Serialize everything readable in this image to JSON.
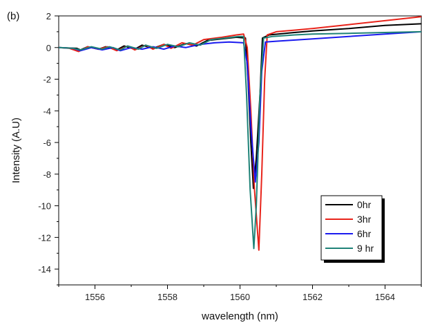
{
  "chart_data": {
    "type": "line",
    "panel_label": "(b)",
    "title": "",
    "xlabel": "wavelength (nm)",
    "ylabel": "Intensity (A.U)",
    "xlim": [
      1555,
      1565
    ],
    "ylim": [
      -15,
      2
    ],
    "x_ticks": [
      1556,
      1558,
      1560,
      1562,
      1564
    ],
    "y_ticks": [
      2,
      0,
      -2,
      -4,
      -6,
      -8,
      -10,
      -12,
      -14
    ],
    "grid": false,
    "legend": {
      "placement": "bottom-right",
      "entries": [
        "0hr",
        "3hr",
        "6hr",
        "9 hr"
      ]
    },
    "series": [
      {
        "name": "0hr",
        "color": "#000000",
        "points": [
          [
            1555,
            0
          ],
          [
            1555.5,
            -0.05
          ],
          [
            1555.6,
            -0.15
          ],
          [
            1555.8,
            0.05
          ],
          [
            1556.1,
            -0.1
          ],
          [
            1556.3,
            0.05
          ],
          [
            1556.6,
            -0.15
          ],
          [
            1556.8,
            0.1
          ],
          [
            1557.1,
            -0.1
          ],
          [
            1557.3,
            0.15
          ],
          [
            1557.6,
            -0.05
          ],
          [
            1557.9,
            0.2
          ],
          [
            1558.2,
            0
          ],
          [
            1558.5,
            0.25
          ],
          [
            1558.8,
            0.1
          ],
          [
            1559.1,
            0.45
          ],
          [
            1559.5,
            0.55
          ],
          [
            1559.9,
            0.65
          ],
          [
            1560.15,
            0.6
          ],
          [
            1560.22,
            -2
          ],
          [
            1560.3,
            -6
          ],
          [
            1560.37,
            -8.9
          ],
          [
            1560.45,
            -7
          ],
          [
            1560.55,
            -3
          ],
          [
            1560.62,
            0.6
          ],
          [
            1560.8,
            0.8
          ],
          [
            1561.5,
            0.95
          ],
          [
            1562,
            1.05
          ],
          [
            1563,
            1.2
          ],
          [
            1564,
            1.4
          ],
          [
            1565,
            1.5
          ]
        ]
      },
      {
        "name": "3hr",
        "color": "#e8231a",
        "points": [
          [
            1555,
            0
          ],
          [
            1555.3,
            -0.05
          ],
          [
            1555.55,
            -0.25
          ],
          [
            1555.8,
            0.05
          ],
          [
            1556.1,
            -0.1
          ],
          [
            1556.35,
            0.05
          ],
          [
            1556.6,
            -0.2
          ],
          [
            1556.9,
            0.1
          ],
          [
            1557.1,
            -0.15
          ],
          [
            1557.4,
            0.15
          ],
          [
            1557.6,
            -0.1
          ],
          [
            1557.9,
            0.2
          ],
          [
            1558.1,
            -0.05
          ],
          [
            1558.4,
            0.3
          ],
          [
            1558.7,
            0.15
          ],
          [
            1559,
            0.5
          ],
          [
            1559.5,
            0.65
          ],
          [
            1559.9,
            0.8
          ],
          [
            1560.1,
            0.85
          ],
          [
            1560.2,
            0
          ],
          [
            1560.3,
            -4
          ],
          [
            1560.4,
            -9
          ],
          [
            1560.52,
            -12.8
          ],
          [
            1560.6,
            -8
          ],
          [
            1560.68,
            -2
          ],
          [
            1560.75,
            0.8
          ],
          [
            1561,
            1
          ],
          [
            1561.5,
            1.1
          ],
          [
            1562,
            1.2
          ],
          [
            1563,
            1.45
          ],
          [
            1564,
            1.7
          ],
          [
            1565,
            1.95
          ]
        ]
      },
      {
        "name": "6hr",
        "color": "#1a1aef",
        "points": [
          [
            1555,
            0
          ],
          [
            1555.4,
            -0.05
          ],
          [
            1555.6,
            -0.2
          ],
          [
            1555.9,
            0
          ],
          [
            1556.2,
            -0.15
          ],
          [
            1556.5,
            0
          ],
          [
            1556.7,
            -0.2
          ],
          [
            1557,
            0
          ],
          [
            1557.3,
            -0.1
          ],
          [
            1557.6,
            0.05
          ],
          [
            1557.9,
            -0.1
          ],
          [
            1558.2,
            0.1
          ],
          [
            1558.5,
            0
          ],
          [
            1558.9,
            0.2
          ],
          [
            1559.3,
            0.3
          ],
          [
            1559.7,
            0.35
          ],
          [
            1560.1,
            0.3
          ],
          [
            1560.2,
            -1
          ],
          [
            1560.3,
            -5
          ],
          [
            1560.42,
            -8.5
          ],
          [
            1560.52,
            -6
          ],
          [
            1560.6,
            -1.5
          ],
          [
            1560.7,
            0.35
          ],
          [
            1561,
            0.4
          ],
          [
            1562,
            0.55
          ],
          [
            1563,
            0.7
          ],
          [
            1564,
            0.85
          ],
          [
            1565,
            1
          ]
        ]
      },
      {
        "name": "9 hr",
        "color": "#1e8277",
        "points": [
          [
            1555,
            0
          ],
          [
            1555.4,
            -0.05
          ],
          [
            1555.6,
            -0.15
          ],
          [
            1555.9,
            0.05
          ],
          [
            1556.2,
            -0.1
          ],
          [
            1556.4,
            0.05
          ],
          [
            1556.7,
            -0.15
          ],
          [
            1556.9,
            0.1
          ],
          [
            1557.2,
            -0.1
          ],
          [
            1557.4,
            0.15
          ],
          [
            1557.7,
            -0.05
          ],
          [
            1558,
            0.2
          ],
          [
            1558.3,
            0.05
          ],
          [
            1558.6,
            0.3
          ],
          [
            1558.9,
            0.15
          ],
          [
            1559.2,
            0.5
          ],
          [
            1559.6,
            0.6
          ],
          [
            1559.95,
            0.7
          ],
          [
            1560.1,
            0.7
          ],
          [
            1560.18,
            -3
          ],
          [
            1560.28,
            -9
          ],
          [
            1560.38,
            -12.7
          ],
          [
            1560.45,
            -10
          ],
          [
            1560.55,
            -3
          ],
          [
            1560.65,
            0.6
          ],
          [
            1560.9,
            0.7
          ],
          [
            1561.5,
            0.8
          ],
          [
            1562,
            0.85
          ],
          [
            1563,
            0.9
          ],
          [
            1564,
            0.95
          ],
          [
            1565,
            1.0
          ]
        ]
      }
    ]
  }
}
